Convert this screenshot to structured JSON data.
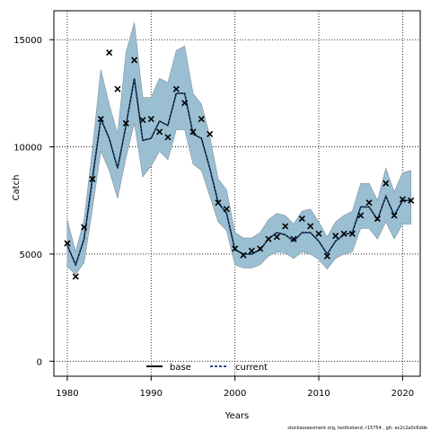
{
  "chart_data": {
    "type": "line",
    "xlabel": "Years",
    "ylabel": "Catch",
    "xlim": [
      1978.4,
      2022.1
    ],
    "ylim": [
      -700,
      16350
    ],
    "xticks": [
      1980,
      1990,
      2000,
      2010,
      2020
    ],
    "yticks": [
      0,
      5000,
      10000,
      15000
    ],
    "grid": "dotted",
    "legend": {
      "placement": "bottom-center",
      "entries": [
        "base",
        "current"
      ]
    },
    "colors": {
      "band": "#9bbfd2",
      "band_edge": "#7c8f9c",
      "line": "#000000",
      "current": "#1f4e8c"
    },
    "x": [
      1980,
      1981,
      1982,
      1983,
      1984,
      1985,
      1986,
      1987,
      1988,
      1989,
      1990,
      1991,
      1992,
      1993,
      1994,
      1995,
      1996,
      1997,
      1998,
      1999,
      2000,
      2001,
      2002,
      2003,
      2004,
      2005,
      2006,
      2007,
      2008,
      2009,
      2010,
      2011,
      2012,
      2013,
      2014,
      2015,
      2016,
      2017,
      2018,
      2019,
      2020,
      2021
    ],
    "series": [
      {
        "name": "base",
        "style": "band",
        "lower": [
          4400,
          4050,
          4600,
          7100,
          9800,
          8900,
          7600,
          9500,
          11100,
          8600,
          9100,
          9800,
          9400,
          10800,
          10800,
          9200,
          8900,
          7700,
          6500,
          6100,
          4500,
          4350,
          4350,
          4500,
          4900,
          5100,
          5050,
          4800,
          5100,
          5000,
          4750,
          4300,
          4800,
          5000,
          5100,
          6200,
          6200,
          5700,
          6500,
          5700,
          6400,
          6400
        ],
        "upper": [
          6600,
          5100,
          6600,
          9900,
          13600,
          12000,
          10600,
          14400,
          15800,
          12300,
          12300,
          13200,
          13000,
          14500,
          14700,
          12500,
          12000,
          10500,
          8500,
          8000,
          6000,
          5750,
          5750,
          6000,
          6600,
          6900,
          6800,
          6400,
          7000,
          7100,
          6500,
          5800,
          6500,
          6800,
          7000,
          8300,
          8300,
          7500,
          9000,
          7900,
          8800,
          8900
        ],
        "values": [
          5400,
          4500,
          5700,
          8500,
          11300,
          10400,
          9000,
          11000,
          13200,
          10300,
          10400,
          11200,
          11000,
          12500,
          12500,
          10600,
          10400,
          9000,
          7400,
          6900,
          5200,
          5000,
          5000,
          5200,
          5700,
          6000,
          5900,
          5600,
          6000,
          6000,
          5600,
          5000,
          5600,
          5900,
          6000,
          7200,
          7200,
          6600,
          7700,
          6800,
          7500,
          7500
        ]
      },
      {
        "name": "current",
        "style": "dotted",
        "values": [
          5400,
          4500,
          5700,
          8500,
          11300,
          10400,
          9000,
          11000,
          13200,
          10300,
          10400,
          11200,
          11000,
          12500,
          12500,
          10600,
          10400,
          9000,
          7400,
          6900,
          5200,
          5000,
          5000,
          5200,
          5700,
          6000,
          5900,
          5600,
          6000,
          6000,
          5600,
          5000,
          5600,
          5900,
          6000,
          7200,
          7200,
          6600,
          7700,
          6800,
          7500,
          7500
        ]
      },
      {
        "name": "observed",
        "style": "cross",
        "values": [
          5500,
          3950,
          6250,
          8500,
          11300,
          14400,
          12700,
          11100,
          14050,
          11250,
          11300,
          10700,
          10450,
          12700,
          12050,
          10700,
          11300,
          10600,
          7400,
          7100,
          5250,
          4950,
          5150,
          5250,
          5700,
          5800,
          6300,
          5700,
          6650,
          6300,
          5950,
          4900,
          5850,
          5950,
          5950,
          6800,
          7400,
          6650,
          8300,
          6800,
          7550,
          7500
        ]
      }
    ]
  },
  "footer": "stockassessment.org,  testIceland,  r15754 ,  git:  ec2c2a0c6dde"
}
